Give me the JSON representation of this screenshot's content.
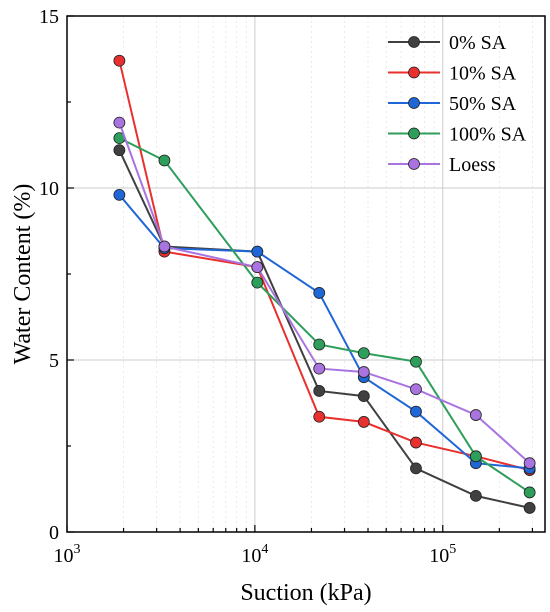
{
  "chart_data": {
    "type": "line",
    "xlabel": "Suction (kPa)",
    "ylabel": "Water Content (%)",
    "xscale": "log",
    "xlim": [
      1000,
      350000
    ],
    "ylim": [
      0,
      15
    ],
    "x_ticks": [
      {
        "value": 1000,
        "base": "10",
        "exp": "3"
      },
      {
        "value": 10000,
        "base": "10",
        "exp": "4"
      },
      {
        "value": 100000,
        "base": "10",
        "exp": "5"
      }
    ],
    "y_ticks": [
      {
        "value": 0,
        "label": "0"
      },
      {
        "value": 5,
        "label": "5"
      },
      {
        "value": 10,
        "label": "10"
      },
      {
        "value": 15,
        "label": "15"
      }
    ],
    "grid": true,
    "legend_position": "top-right",
    "series": [
      {
        "name": "0% SA",
        "color": "#404040",
        "x": [
          1900,
          3300,
          10300,
          22000,
          38000,
          72000,
          150000,
          290000
        ],
        "y": [
          11.1,
          8.3,
          8.15,
          4.1,
          3.95,
          1.85,
          1.05,
          0.7
        ]
      },
      {
        "name": "10% SA",
        "color": "#e8312e",
        "x": [
          1900,
          3300,
          10300,
          22000,
          38000,
          72000,
          150000,
          290000
        ],
        "y": [
          13.7,
          8.15,
          7.7,
          3.35,
          3.2,
          2.6,
          2.2,
          1.8
        ]
      },
      {
        "name": "50% SA",
        "color": "#1f66d6",
        "x": [
          1900,
          3300,
          10300,
          22000,
          38000,
          72000,
          150000,
          290000
        ],
        "y": [
          9.8,
          8.25,
          8.15,
          6.95,
          4.5,
          3.5,
          2.0,
          1.85
        ]
      },
      {
        "name": "100% SA",
        "color": "#2e9e5b",
        "x": [
          1900,
          3300,
          10300,
          22000,
          38000,
          72000,
          150000,
          290000
        ],
        "y": [
          11.45,
          10.8,
          7.25,
          5.45,
          5.2,
          4.95,
          2.2,
          1.15
        ]
      },
      {
        "name": "Loess",
        "color": "#a974e0",
        "x": [
          1900,
          3300,
          10300,
          22000,
          38000,
          72000,
          150000,
          290000
        ],
        "y": [
          11.9,
          8.3,
          7.7,
          4.75,
          4.65,
          4.15,
          3.4,
          2.0
        ]
      }
    ]
  }
}
